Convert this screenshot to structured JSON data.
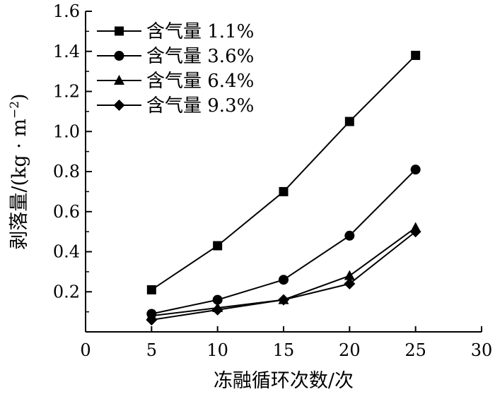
{
  "chart_data": {
    "type": "line",
    "title": "",
    "xlabel": "冻融循环次数/次",
    "ylabel_main": "剥落量/(kg · m",
    "ylabel_sup": "−2",
    "ylabel_close": ")",
    "xlim": [
      0,
      30
    ],
    "ylim": [
      0,
      1.6
    ],
    "xticks": [
      "0",
      "5",
      "10",
      "15",
      "20",
      "25",
      "30"
    ],
    "yticks": [
      "0.2",
      "0.4",
      "0.6",
      "0.8",
      "1.0",
      "1.2",
      "1.4",
      "1.6"
    ],
    "grid": false,
    "legend_position": "top-left",
    "x": [
      5,
      10,
      15,
      20,
      25
    ],
    "series": [
      {
        "name": "含气量 1.1%",
        "marker": "square",
        "values": [
          0.21,
          0.43,
          0.7,
          1.05,
          1.38
        ]
      },
      {
        "name": "含气量 3.6%",
        "marker": "circle",
        "values": [
          0.09,
          0.16,
          0.26,
          0.48,
          0.81
        ]
      },
      {
        "name": "含气量 6.4%",
        "marker": "triangle",
        "values": [
          0.08,
          0.12,
          0.16,
          0.28,
          0.52
        ]
      },
      {
        "name": "含气量 9.3%",
        "marker": "diamond",
        "values": [
          0.06,
          0.11,
          0.16,
          0.24,
          0.5
        ]
      }
    ]
  }
}
